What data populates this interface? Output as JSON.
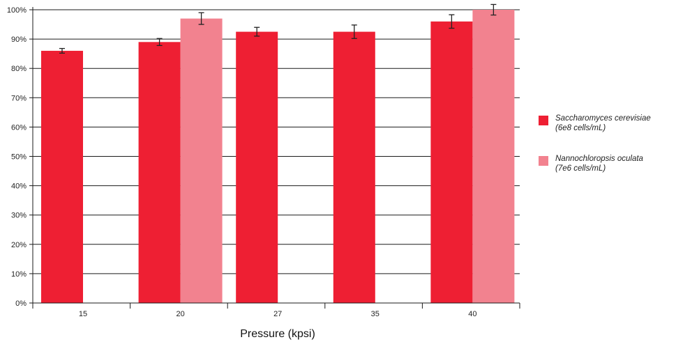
{
  "chart_data": {
    "type": "bar",
    "categories": [
      "15",
      "20",
      "27",
      "35",
      "40"
    ],
    "xlabel": "Pressure (kpsi)",
    "ylabel": "",
    "ylim": [
      0,
      100
    ],
    "yticks": [
      "0%",
      "10%",
      "20%",
      "30%",
      "40%",
      "50%",
      "60%",
      "70%",
      "80%",
      "90%",
      "100%"
    ],
    "grid": true,
    "legend_position": "right",
    "series": [
      {
        "name": "Saccharomyces cerevisiae",
        "name_line2": "(6e8 cells/mL)",
        "color": "#ee1f33",
        "values": [
          86,
          89,
          92.5,
          92.5,
          96
        ],
        "errors": [
          0.8,
          1.2,
          1.5,
          2.3,
          2.3
        ]
      },
      {
        "name": "Nannochloropsis oculata",
        "name_line2": "(7e6 cells/mL)",
        "color": "#f2828f",
        "values": [
          null,
          97,
          null,
          null,
          100
        ],
        "errors": [
          null,
          2.0,
          null,
          null,
          1.8
        ]
      }
    ]
  }
}
